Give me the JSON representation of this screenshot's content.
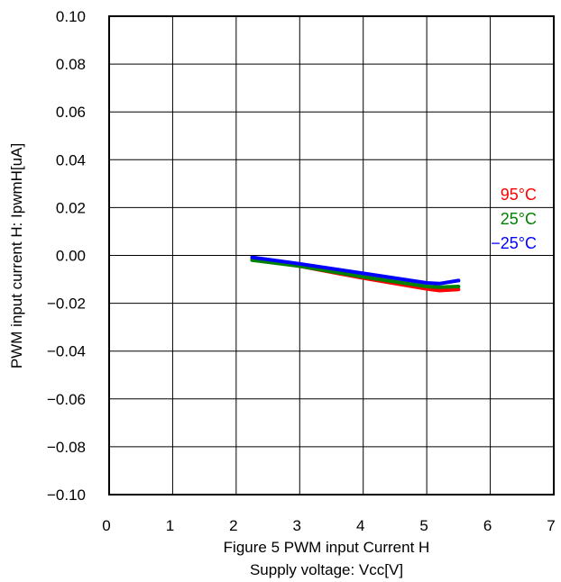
{
  "chart_data": {
    "type": "line",
    "title": "Figure 5 PWM input Current H",
    "xlabel": "Supply voltage: Vcc[V]",
    "ylabel": "PWM input current H: IpwmH[uA]",
    "xlim": [
      0,
      7
    ],
    "ylim": [
      -0.1,
      0.1
    ],
    "x_ticks": [
      "0",
      "1",
      "2",
      "3",
      "4",
      "5",
      "6",
      "7"
    ],
    "y_ticks": [
      "0.10",
      "0.08",
      "0.06",
      "0.04",
      "0.02",
      "0.00",
      "−0.02",
      "−0.04",
      "−0.06",
      "−0.08",
      "−0.10"
    ],
    "grid": true,
    "legend_placement": "right",
    "series": [
      {
        "name": "95°C",
        "color": "#ff0000",
        "x": [
          2.25,
          3.0,
          4.0,
          5.0,
          5.2,
          5.5
        ],
        "y": [
          -0.0015,
          -0.0045,
          -0.0095,
          -0.014,
          -0.0147,
          -0.0142
        ]
      },
      {
        "name": "25°C",
        "color": "#008000",
        "x": [
          2.25,
          3.0,
          4.0,
          5.0,
          5.2,
          5.5
        ],
        "y": [
          -0.002,
          -0.0045,
          -0.009,
          -0.013,
          -0.0133,
          -0.013
        ]
      },
      {
        "name": "−25°C",
        "color": "#0000ff",
        "x": [
          2.25,
          3.0,
          4.0,
          5.0,
          5.2,
          5.5
        ],
        "y": [
          -0.0008,
          -0.0035,
          -0.0075,
          -0.0115,
          -0.0118,
          -0.0105
        ]
      }
    ]
  }
}
